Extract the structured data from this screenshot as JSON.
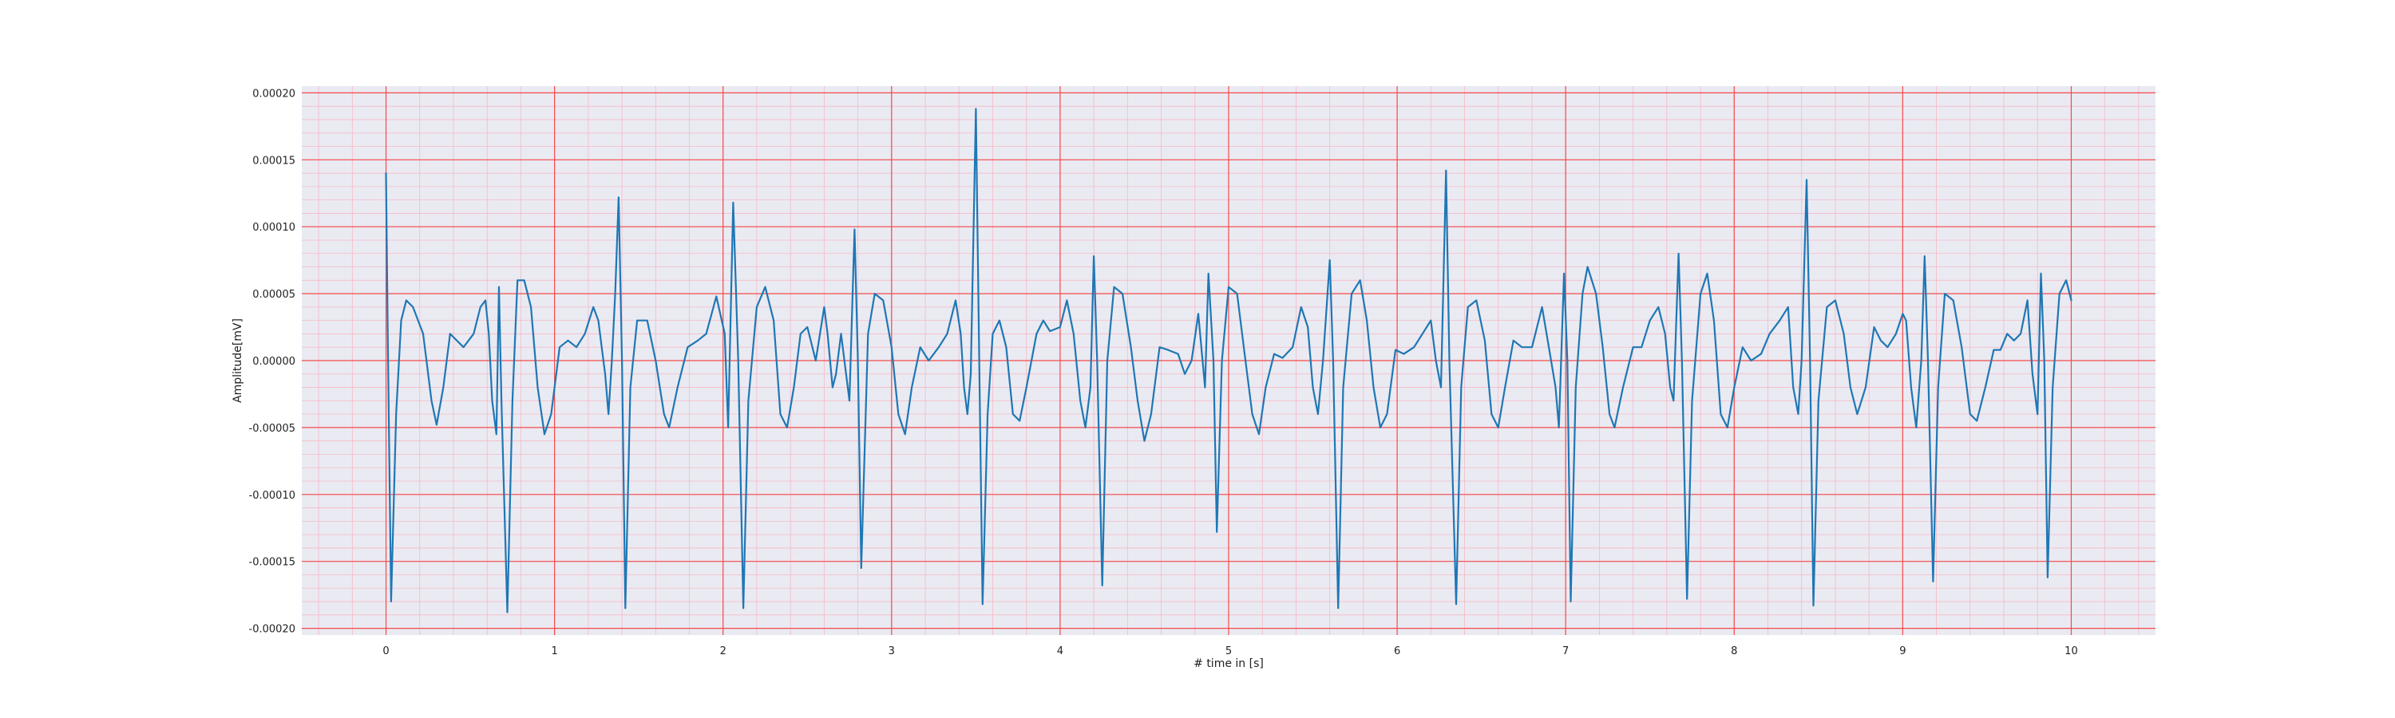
{
  "chart_data": {
    "type": "line",
    "title": "",
    "xlabel": "# time in [s]",
    "ylabel": "Amplitude[mV]",
    "xlim": [
      -0.5,
      10.5
    ],
    "ylim": [
      -0.000205,
      0.000205
    ],
    "x_ticks": [
      0,
      1,
      2,
      3,
      4,
      5,
      6,
      7,
      8,
      9,
      10
    ],
    "x_tick_labels": [
      "0",
      "1",
      "2",
      "3",
      "4",
      "5",
      "6",
      "7",
      "8",
      "9",
      "10"
    ],
    "y_ticks": [
      0.0002,
      0.00015,
      0.0001,
      5e-05,
      0,
      -5e-05,
      -0.0001,
      -0.00015,
      -0.0002
    ],
    "y_tick_labels": [
      "0.00020",
      "0.00015",
      "0.00010",
      "0.00005",
      "0.00000",
      "-0.00005",
      "-0.00010",
      "-0.00015",
      "-0.00020"
    ],
    "grid": true,
    "colors": {
      "plot_background": "#eaeaf2",
      "major_grid": "#f44a4a",
      "minor_grid": "#f6b9c6",
      "line": "#1f77b4"
    },
    "series": [
      {
        "points": [
          [
            0.0,
            0.00014
          ],
          [
            0.01,
            2e-05
          ],
          [
            0.03,
            -0.00018
          ],
          [
            0.06,
            -4e-05
          ],
          [
            0.09,
            3e-05
          ],
          [
            0.12,
            4.5e-05
          ],
          [
            0.16,
            4e-05
          ],
          [
            0.22,
            2e-05
          ],
          [
            0.27,
            -3e-05
          ],
          [
            0.3,
            -4.8e-05
          ],
          [
            0.34,
            -2e-05
          ],
          [
            0.38,
            2e-05
          ],
          [
            0.42,
            1.5e-05
          ],
          [
            0.46,
            1e-05
          ],
          [
            0.52,
            2e-05
          ],
          [
            0.56,
            4e-05
          ],
          [
            0.59,
            4.5e-05
          ],
          [
            0.61,
            2e-05
          ],
          [
            0.63,
            -3e-05
          ],
          [
            0.655,
            -5.5e-05
          ],
          [
            0.67,
            5.5e-05
          ],
          [
            0.685,
            -3e-05
          ],
          [
            0.72,
            -0.000188
          ],
          [
            0.75,
            -3e-05
          ],
          [
            0.78,
            6e-05
          ],
          [
            0.82,
            6e-05
          ],
          [
            0.86,
            4e-05
          ],
          [
            0.9,
            -2e-05
          ],
          [
            0.94,
            -5.5e-05
          ],
          [
            0.98,
            -4e-05
          ],
          [
            1.03,
            1e-05
          ],
          [
            1.08,
            1.5e-05
          ],
          [
            1.13,
            1e-05
          ],
          [
            1.18,
            2e-05
          ],
          [
            1.23,
            4e-05
          ],
          [
            1.26,
            3e-05
          ],
          [
            1.28,
            1e-05
          ],
          [
            1.3,
            -1e-05
          ],
          [
            1.32,
            -4e-05
          ],
          [
            1.34,
            0.0
          ],
          [
            1.36,
            5e-05
          ],
          [
            1.38,
            0.000122
          ],
          [
            1.4,
            0.0
          ],
          [
            1.42,
            -0.000185
          ],
          [
            1.45,
            -2e-05
          ],
          [
            1.49,
            3e-05
          ],
          [
            1.55,
            3e-05
          ],
          [
            1.6,
            0.0
          ],
          [
            1.65,
            -4e-05
          ],
          [
            1.68,
            -5e-05
          ],
          [
            1.73,
            -2e-05
          ],
          [
            1.79,
            1e-05
          ],
          [
            1.85,
            1.5e-05
          ],
          [
            1.9,
            2e-05
          ],
          [
            1.96,
            4.8e-05
          ],
          [
            2.01,
            2e-05
          ],
          [
            2.03,
            -5e-05
          ],
          [
            2.06,
            0.000118
          ],
          [
            2.09,
            0.0
          ],
          [
            2.12,
            -0.000185
          ],
          [
            2.15,
            -3e-05
          ],
          [
            2.2,
            4e-05
          ],
          [
            2.25,
            5.5e-05
          ],
          [
            2.3,
            3e-05
          ],
          [
            2.34,
            -4e-05
          ],
          [
            2.38,
            -5e-05
          ],
          [
            2.42,
            -2e-05
          ],
          [
            2.46,
            2e-05
          ],
          [
            2.5,
            2.5e-05
          ],
          [
            2.55,
            0.0
          ],
          [
            2.6,
            4e-05
          ],
          [
            2.62,
            2e-05
          ],
          [
            2.65,
            -2e-05
          ],
          [
            2.67,
            -1e-05
          ],
          [
            2.7,
            2e-05
          ],
          [
            2.75,
            -3e-05
          ],
          [
            2.78,
            9.8e-05
          ],
          [
            2.8,
            0.0
          ],
          [
            2.82,
            -0.000155
          ],
          [
            2.86,
            2e-05
          ],
          [
            2.9,
            5e-05
          ],
          [
            2.95,
            4.5e-05
          ],
          [
            3.0,
            1e-05
          ],
          [
            3.04,
            -4e-05
          ],
          [
            3.08,
            -5.5e-05
          ],
          [
            3.12,
            -2e-05
          ],
          [
            3.17,
            1e-05
          ],
          [
            3.22,
            0.0
          ],
          [
            3.28,
            1e-05
          ],
          [
            3.33,
            2e-05
          ],
          [
            3.38,
            4.5e-05
          ],
          [
            3.41,
            2e-05
          ],
          [
            3.43,
            -2e-05
          ],
          [
            3.45,
            -4e-05
          ],
          [
            3.47,
            -1e-05
          ],
          [
            3.5,
            0.000188
          ],
          [
            3.52,
            0.0
          ],
          [
            3.54,
            -0.000182
          ],
          [
            3.57,
            -4e-05
          ],
          [
            3.6,
            2e-05
          ],
          [
            3.64,
            3e-05
          ],
          [
            3.68,
            1e-05
          ],
          [
            3.72,
            -4e-05
          ],
          [
            3.76,
            -4.5e-05
          ],
          [
            3.8,
            -2e-05
          ],
          [
            3.86,
            2e-05
          ],
          [
            3.9,
            3e-05
          ],
          [
            3.94,
            2.2e-05
          ],
          [
            4.0,
            2.5e-05
          ],
          [
            4.04,
            4.5e-05
          ],
          [
            4.08,
            2e-05
          ],
          [
            4.12,
            -3e-05
          ],
          [
            4.15,
            -5e-05
          ],
          [
            4.18,
            -2e-05
          ],
          [
            4.2,
            7.8e-05
          ],
          [
            4.22,
            0.0
          ],
          [
            4.25,
            -0.000168
          ],
          [
            4.28,
            0.0
          ],
          [
            4.32,
            5.5e-05
          ],
          [
            4.37,
            5e-05
          ],
          [
            4.42,
            1e-05
          ],
          [
            4.46,
            -3e-05
          ],
          [
            4.5,
            -6e-05
          ],
          [
            4.54,
            -4e-05
          ],
          [
            4.59,
            1e-05
          ],
          [
            4.64,
            8e-06
          ],
          [
            4.7,
            5e-06
          ],
          [
            4.74,
            -1e-05
          ],
          [
            4.78,
            0.0
          ],
          [
            4.82,
            3.5e-05
          ],
          [
            4.86,
            -2e-05
          ],
          [
            4.88,
            6.5e-05
          ],
          [
            4.91,
            0.0
          ],
          [
            4.93,
            -0.000128
          ],
          [
            4.96,
            0.0
          ],
          [
            5.0,
            5.5e-05
          ],
          [
            5.05,
            5e-05
          ],
          [
            5.1,
            0.0
          ],
          [
            5.14,
            -4e-05
          ],
          [
            5.18,
            -5.5e-05
          ],
          [
            5.22,
            -2e-05
          ],
          [
            5.27,
            5e-06
          ],
          [
            5.32,
            2e-06
          ],
          [
            5.38,
            1e-05
          ],
          [
            5.43,
            4e-05
          ],
          [
            5.47,
            2.5e-05
          ],
          [
            5.5,
            -2e-05
          ],
          [
            5.53,
            -4e-05
          ],
          [
            5.56,
            0.0
          ],
          [
            5.6,
            7.5e-05
          ],
          [
            5.62,
            0.0
          ],
          [
            5.65,
            -0.000185
          ],
          [
            5.68,
            -2e-05
          ],
          [
            5.73,
            5e-05
          ],
          [
            5.78,
            6e-05
          ],
          [
            5.82,
            3e-05
          ],
          [
            5.86,
            -2e-05
          ],
          [
            5.9,
            -5e-05
          ],
          [
            5.94,
            -4e-05
          ],
          [
            5.99,
            8e-06
          ],
          [
            6.04,
            5e-06
          ],
          [
            6.1,
            1e-05
          ],
          [
            6.15,
            2e-05
          ],
          [
            6.2,
            3e-05
          ],
          [
            6.23,
            0.0
          ],
          [
            6.26,
            -2e-05
          ],
          [
            6.29,
            0.000142
          ],
          [
            6.31,
            0.0
          ],
          [
            6.35,
            -0.000182
          ],
          [
            6.38,
            -2e-05
          ],
          [
            6.42,
            4e-05
          ],
          [
            6.47,
            4.5e-05
          ],
          [
            6.52,
            1.5e-05
          ],
          [
            6.56,
            -4e-05
          ],
          [
            6.6,
            -5e-05
          ],
          [
            6.64,
            -2e-05
          ],
          [
            6.69,
            1.5e-05
          ],
          [
            6.74,
            1e-05
          ],
          [
            6.8,
            1e-05
          ],
          [
            6.86,
            4e-05
          ],
          [
            6.9,
            1e-05
          ],
          [
            6.94,
            -2e-05
          ],
          [
            6.96,
            -5e-05
          ],
          [
            6.99,
            6.5e-05
          ],
          [
            7.01,
            0.0
          ],
          [
            7.03,
            -0.00018
          ],
          [
            7.06,
            -2e-05
          ],
          [
            7.1,
            5e-05
          ],
          [
            7.13,
            7e-05
          ],
          [
            7.18,
            5e-05
          ],
          [
            7.22,
            1e-05
          ],
          [
            7.26,
            -4e-05
          ],
          [
            7.29,
            -5e-05
          ],
          [
            7.34,
            -2e-05
          ],
          [
            7.4,
            1e-05
          ],
          [
            7.45,
            1e-05
          ],
          [
            7.5,
            3e-05
          ],
          [
            7.55,
            4e-05
          ],
          [
            7.59,
            2e-05
          ],
          [
            7.62,
            -2e-05
          ],
          [
            7.64,
            -3e-05
          ],
          [
            7.67,
            8e-05
          ],
          [
            7.69,
            0.0
          ],
          [
            7.72,
            -0.000178
          ],
          [
            7.75,
            -3e-05
          ],
          [
            7.8,
            5e-05
          ],
          [
            7.84,
            6.5e-05
          ],
          [
            7.88,
            3e-05
          ],
          [
            7.92,
            -4e-05
          ],
          [
            7.96,
            -5e-05
          ],
          [
            8.0,
            -2e-05
          ],
          [
            8.05,
            1e-05
          ],
          [
            8.1,
            0.0
          ],
          [
            8.16,
            5e-06
          ],
          [
            8.21,
            2e-05
          ],
          [
            8.27,
            3e-05
          ],
          [
            8.32,
            4e-05
          ],
          [
            8.35,
            -2e-05
          ],
          [
            8.38,
            -4e-05
          ],
          [
            8.4,
            0.0
          ],
          [
            8.43,
            0.000135
          ],
          [
            8.45,
            0.0
          ],
          [
            8.47,
            -0.000183
          ],
          [
            8.5,
            -3e-05
          ],
          [
            8.55,
            4e-05
          ],
          [
            8.6,
            4.5e-05
          ],
          [
            8.65,
            2e-05
          ],
          [
            8.69,
            -2e-05
          ],
          [
            8.73,
            -4e-05
          ],
          [
            8.78,
            -2e-05
          ],
          [
            8.83,
            2.5e-05
          ],
          [
            8.87,
            1.5e-05
          ],
          [
            8.91,
            1e-05
          ],
          [
            8.96,
            2e-05
          ],
          [
            9.0,
            3.5e-05
          ],
          [
            9.02,
            3e-05
          ],
          [
            9.05,
            -2e-05
          ],
          [
            9.08,
            -5e-05
          ],
          [
            9.11,
            0.0
          ],
          [
            9.13,
            7.8e-05
          ],
          [
            9.15,
            0.0
          ],
          [
            9.18,
            -0.000165
          ],
          [
            9.21,
            -2e-05
          ],
          [
            9.25,
            5e-05
          ],
          [
            9.3,
            4.5e-05
          ],
          [
            9.35,
            1e-05
          ],
          [
            9.4,
            -4e-05
          ],
          [
            9.44,
            -4.5e-05
          ],
          [
            9.49,
            -2e-05
          ],
          [
            9.54,
            8e-06
          ],
          [
            9.58,
            8e-06
          ],
          [
            9.62,
            2e-05
          ],
          [
            9.66,
            1.5e-05
          ],
          [
            9.7,
            2e-05
          ],
          [
            9.74,
            4.5e-05
          ],
          [
            9.77,
            -1e-05
          ],
          [
            9.8,
            -4e-05
          ],
          [
            9.82,
            6.5e-05
          ],
          [
            9.84,
            0.0
          ],
          [
            9.86,
            -0.000162
          ],
          [
            9.89,
            -2e-05
          ],
          [
            9.93,
            5e-05
          ],
          [
            9.97,
            6e-05
          ],
          [
            10.0,
            4.5e-05
          ]
        ]
      }
    ]
  }
}
